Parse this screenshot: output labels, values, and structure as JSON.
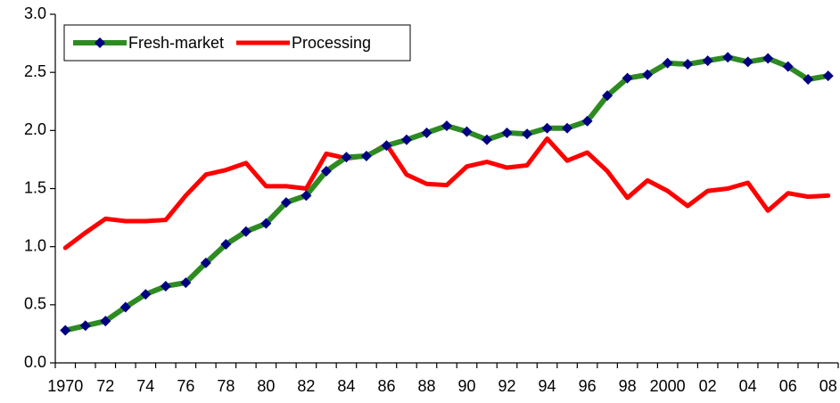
{
  "chart_data": {
    "type": "line",
    "categories": [
      "1970",
      null,
      "72",
      null,
      "74",
      null,
      "76",
      null,
      "78",
      null,
      "80",
      null,
      "82",
      null,
      "84",
      null,
      "86",
      null,
      "88",
      null,
      "90",
      null,
      "92",
      null,
      "94",
      null,
      "96",
      null,
      "98",
      null,
      "2000",
      null,
      "02",
      null,
      "04",
      null,
      "06",
      null,
      "08"
    ],
    "series": [
      {
        "name": "Fresh-market",
        "color": "#2e8b22",
        "marker_color": "#000080",
        "values": [
          0.28,
          0.32,
          0.36,
          0.48,
          0.59,
          0.66,
          0.69,
          0.86,
          1.02,
          1.13,
          1.2,
          1.38,
          1.44,
          1.65,
          1.77,
          1.78,
          1.87,
          1.92,
          1.98,
          2.04,
          1.99,
          1.92,
          1.98,
          1.97,
          2.02,
          2.02,
          2.08,
          2.3,
          2.45,
          2.48,
          2.58,
          2.57,
          2.6,
          2.63,
          2.59,
          2.62,
          2.55,
          2.44,
          2.47
        ]
      },
      {
        "name": "Processing",
        "color": "#ff0000",
        "values": [
          0.99,
          1.12,
          1.24,
          1.22,
          1.22,
          1.23,
          1.44,
          1.62,
          1.66,
          1.72,
          1.52,
          1.52,
          1.5,
          1.8,
          1.76,
          1.78,
          1.88,
          1.62,
          1.54,
          1.53,
          1.69,
          1.73,
          1.68,
          1.7,
          1.93,
          1.74,
          1.81,
          1.65,
          1.42,
          1.57,
          1.48,
          1.35,
          1.48,
          1.5,
          1.55,
          1.31,
          1.46,
          1.43,
          1.44
        ]
      }
    ],
    "ylim": [
      0,
      3
    ],
    "yticks": [
      {
        "value": 0,
        "label": "0.0"
      },
      0.5,
      {
        "value": 1,
        "label": "1.0"
      },
      1.5,
      {
        "value": 2,
        "label": "2.0"
      },
      2.5,
      {
        "value": 3,
        "label": "3.0"
      }
    ],
    "grid": false,
    "legend": "top-left"
  }
}
